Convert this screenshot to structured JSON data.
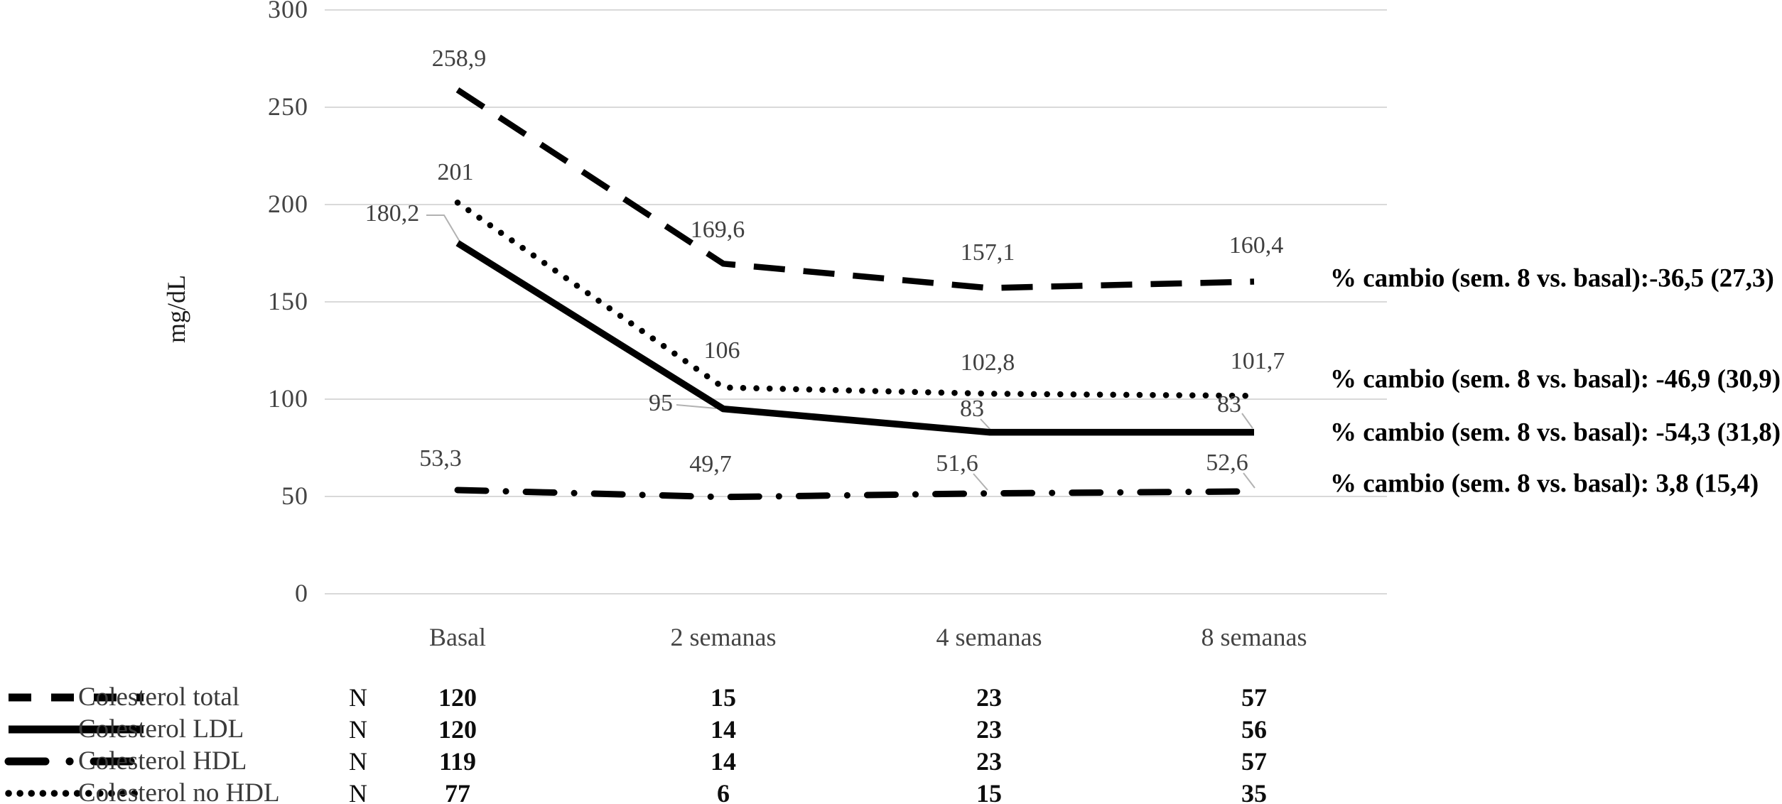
{
  "chart_data": {
    "type": "line",
    "title": "",
    "ylabel": "mg/dL",
    "xlabel": "",
    "ylim": [
      0,
      300
    ],
    "y_ticks": [
      0,
      50,
      100,
      150,
      200,
      250,
      300
    ],
    "grid": "horizontal",
    "legend_position": "bottom-left",
    "categories": [
      "Basal",
      "2 semanas",
      "4 semanas",
      "8 semanas"
    ],
    "series": [
      {
        "name": "Colesterol total",
        "line_style": "dashed",
        "color": "#000000",
        "values": [
          258.9,
          169.6,
          157.1,
          160.4
        ],
        "labels": [
          "258,9",
          "169,6",
          "157,1",
          "160,4"
        ],
        "n_values": [
          120,
          15,
          23,
          57
        ]
      },
      {
        "name": "Colesterol LDL",
        "line_style": "solid",
        "color": "#000000",
        "values": [
          180.2,
          95,
          83,
          83
        ],
        "labels": [
          "180,2",
          "95",
          "83",
          "83"
        ],
        "n_values": [
          120,
          14,
          23,
          56
        ]
      },
      {
        "name": "Colesterol HDL",
        "line_style": "dash-dot",
        "color": "#000000",
        "values": [
          53.3,
          49.7,
          51.6,
          52.6
        ],
        "labels": [
          "53,3",
          "49,7",
          "51,6",
          "52,6"
        ],
        "n_values": [
          119,
          14,
          23,
          57
        ]
      },
      {
        "name": "Colesterol no HDL",
        "line_style": "dotted",
        "color": "#000000",
        "values": [
          201,
          106,
          102.8,
          101.7
        ],
        "labels": [
          "201",
          "106",
          "102,8",
          "101,7"
        ],
        "n_values": [
          77,
          6,
          15,
          35
        ]
      }
    ],
    "annotations": [
      {
        "text": "% cambio (sem. 8 vs. basal):-36,5 (27,3)",
        "series": "Colesterol total"
      },
      {
        "text": "% cambio (sem. 8 vs. basal): -46,9 (30,9)",
        "series": "Colesterol no HDL"
      },
      {
        "text": "% cambio (sem. 8 vs. basal): -54,3 (31,8)",
        "series": "Colesterol LDL"
      },
      {
        "text": "% cambio (sem. 8 vs. basal): 3,8 (15,4)",
        "series": "Colesterol HDL"
      }
    ],
    "colors": {
      "gridline": "#d9d9d9",
      "tick_text": "#444444",
      "leader_line": "#b2b2b2"
    }
  },
  "table": {
    "n_header": "N"
  }
}
